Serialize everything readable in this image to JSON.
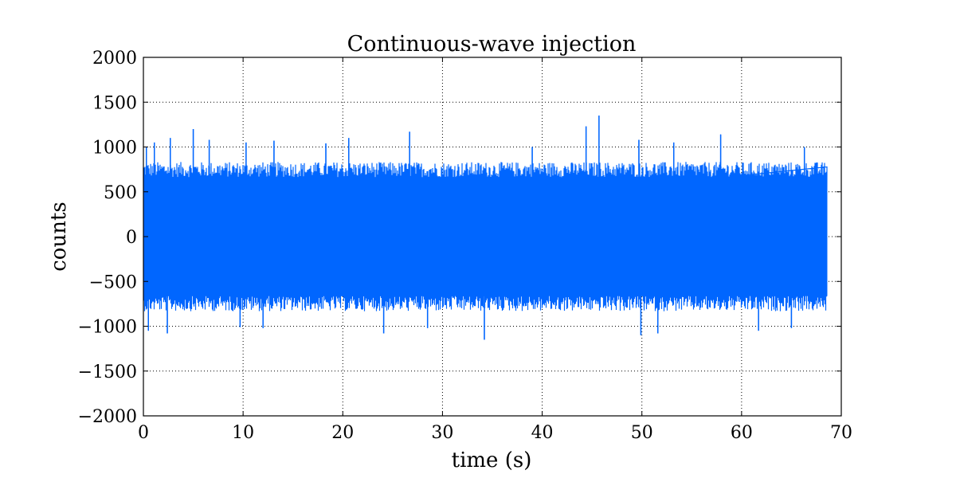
{
  "chart_data": {
    "type": "line",
    "title": "Continuous-wave injection",
    "xlabel": "time (s)",
    "ylabel": "counts",
    "xlim": [
      0,
      70
    ],
    "ylim": [
      -2000,
      2000
    ],
    "x_ticks": [
      0,
      10,
      20,
      30,
      40,
      50,
      60,
      70
    ],
    "y_ticks": [
      2000,
      1500,
      1000,
      500,
      0,
      -500,
      -1000,
      -1500,
      -2000
    ],
    "x_tick_labels": [
      "0",
      "10",
      "20",
      "30",
      "40",
      "50",
      "60",
      "70"
    ],
    "y_tick_labels": [
      "2000",
      "1500",
      "1000",
      "500",
      "0",
      "−500",
      "−1000",
      "−1500",
      "−2000"
    ],
    "grid": true,
    "series_color": "#0066ff",
    "series": [
      {
        "x_range": [
          0,
          68.6
        ],
        "typical_envelope": [
          -850,
          850
        ],
        "peaks": [
          {
            "x": 0.3,
            "y": 1000
          },
          {
            "x": 1.1,
            "y": 1050
          },
          {
            "x": 2.7,
            "y": 1100
          },
          {
            "x": 5.0,
            "y": 1200
          },
          {
            "x": 6.6,
            "y": 1080
          },
          {
            "x": 10.3,
            "y": 1050
          },
          {
            "x": 13.1,
            "y": 1070
          },
          {
            "x": 18.3,
            "y": 1040
          },
          {
            "x": 20.6,
            "y": 1100
          },
          {
            "x": 26.7,
            "y": 1170
          },
          {
            "x": 39.0,
            "y": 1000
          },
          {
            "x": 44.4,
            "y": 1230
          },
          {
            "x": 45.7,
            "y": 1350
          },
          {
            "x": 49.7,
            "y": 1080
          },
          {
            "x": 53.2,
            "y": 1050
          },
          {
            "x": 57.9,
            "y": 1140
          },
          {
            "x": 66.3,
            "y": 1000
          }
        ],
        "troughs": [
          {
            "x": 0.5,
            "y": -1050
          },
          {
            "x": 2.4,
            "y": -1080
          },
          {
            "x": 9.7,
            "y": -1010
          },
          {
            "x": 12.0,
            "y": -1020
          },
          {
            "x": 24.1,
            "y": -1080
          },
          {
            "x": 28.5,
            "y": -1020
          },
          {
            "x": 34.2,
            "y": -1150
          },
          {
            "x": 49.9,
            "y": -1100
          },
          {
            "x": 51.6,
            "y": -1080
          },
          {
            "x": 61.7,
            "y": -1050
          },
          {
            "x": 65.0,
            "y": -1020
          }
        ]
      }
    ]
  }
}
